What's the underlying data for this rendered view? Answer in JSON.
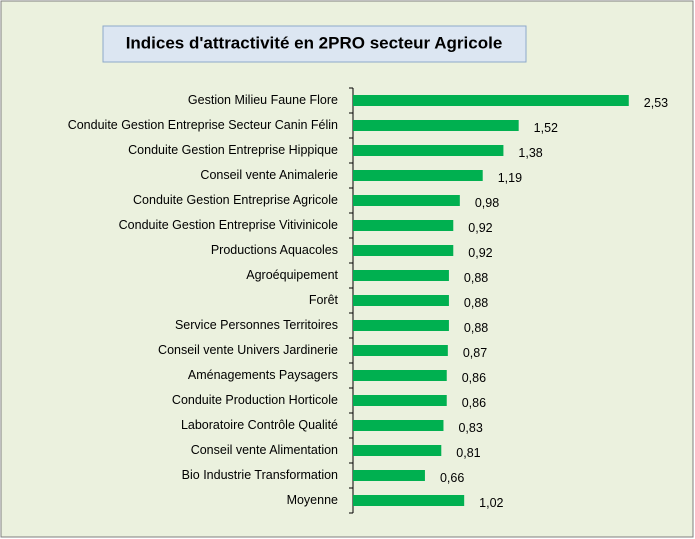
{
  "chart_data": {
    "type": "bar",
    "orientation": "horizontal",
    "title": "Indices d'attractivité en 2PRO secteur Agricole",
    "categories": [
      "Gestion Milieu Faune Flore",
      "Conduite Gestion Entreprise Secteur Canin Félin",
      "Conduite Gestion Entreprise Hippique",
      "Conseil vente Animalerie",
      "Conduite Gestion Entreprise Agricole",
      "Conduite Gestion Entreprise Vitivinicole",
      "Productions Aquacoles",
      "Agroéquipement",
      "Forêt",
      "Service Personnes Territoires",
      "Conseil vente Univers Jardinerie",
      "Aménagements Paysagers",
      "Conduite Production Horticole",
      "Laboratoire Contrôle Qualité",
      "Conseil vente Alimentation",
      "Bio Industrie Transformation",
      "Moyenne"
    ],
    "values": [
      2.53,
      1.52,
      1.38,
      1.19,
      0.98,
      0.92,
      0.92,
      0.88,
      0.88,
      0.88,
      0.87,
      0.86,
      0.86,
      0.83,
      0.81,
      0.66,
      1.02
    ],
    "value_labels": [
      "2,53",
      "1,52",
      "1,38",
      "1,19",
      "0,98",
      "0,92",
      "0,92",
      "0,88",
      "0,88",
      "0,88",
      "0,87",
      "0,86",
      "0,86",
      "0,83",
      "0,81",
      "0,66",
      "1,02"
    ],
    "color": "#00b050",
    "xlim": [
      0,
      3
    ]
  }
}
